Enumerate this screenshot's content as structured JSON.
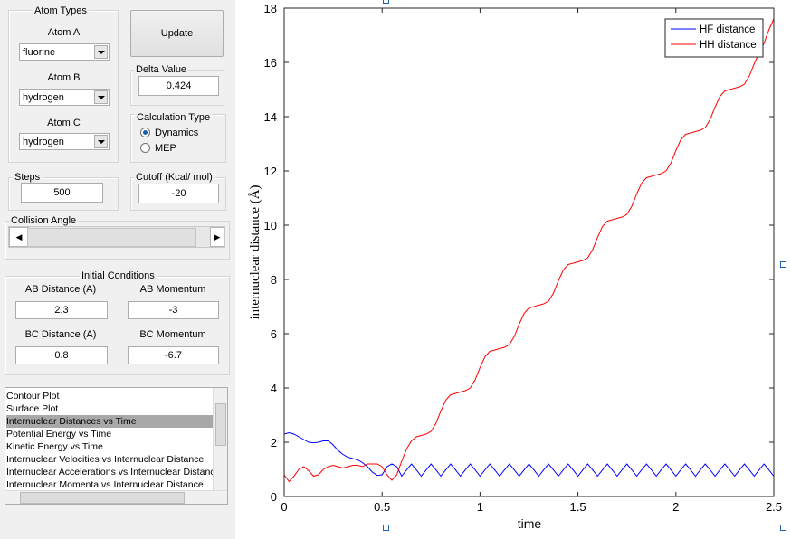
{
  "atom_types": {
    "title": "Atom Types",
    "fields": [
      {
        "label": "Atom A",
        "value": "fluorine"
      },
      {
        "label": "Atom B",
        "value": "hydrogen"
      },
      {
        "label": "Atom C",
        "value": "hydrogen"
      }
    ]
  },
  "update_button": "Update",
  "delta_value": {
    "title": "Delta Value",
    "value": "0.424"
  },
  "calculation_type": {
    "title": "Calculation Type",
    "options": [
      "Dynamics",
      "MEP"
    ]
  },
  "steps": {
    "title": "Steps",
    "value": "500"
  },
  "cutoff": {
    "title": "Cutoff (Kcal/ mol)",
    "value": "-20"
  },
  "collision_angle": {
    "title": "Collision Angle"
  },
  "initial_conditions": {
    "title": "Initial Conditions",
    "fields": [
      {
        "label": "AB Distance (A)",
        "value": "2.3"
      },
      {
        "label": "AB Momentum",
        "value": "-3"
      },
      {
        "label": "BC Distance (A)",
        "value": "0.8"
      },
      {
        "label": "BC Momentum",
        "value": "-6.7"
      }
    ]
  },
  "plot_list": {
    "items": [
      "Contour Plot",
      "Surface Plot",
      "Internuclear Distances vs Time",
      "Potential Energy vs Time",
      "Kinetic Energy vs Time",
      "Internuclear Velocities vs Internuclear Distance",
      "Internuclear Accelerations vs Internuclear Distance",
      "Internuclear Momenta vs Internuclear Distance"
    ],
    "selected": 2
  },
  "chart_data": {
    "type": "line",
    "x_label": "time",
    "y_label": "internuclear distance (Å)",
    "xlim": [
      0,
      2.5
    ],
    "xticks": [
      0,
      0.5,
      1,
      1.5,
      2,
      2.5
    ],
    "ylim": [
      0,
      18
    ],
    "yticks": [
      0,
      2,
      4,
      6,
      8,
      10,
      12,
      14,
      16,
      18
    ],
    "grid": false,
    "legend": "upper right",
    "x": [
      0,
      0.025,
      0.05,
      0.075,
      0.1,
      0.125,
      0.15,
      0.175,
      0.2,
      0.225,
      0.25,
      0.275,
      0.3,
      0.325,
      0.35,
      0.375,
      0.4,
      0.425,
      0.45,
      0.475,
      0.5,
      0.525,
      0.55,
      0.575,
      0.6,
      0.625,
      0.65,
      0.675,
      0.7,
      0.725,
      0.75,
      0.775,
      0.8,
      0.825,
      0.85,
      0.875,
      0.9,
      0.925,
      0.95,
      0.975,
      1,
      1.025,
      1.05,
      1.075,
      1.1,
      1.125,
      1.15,
      1.175,
      1.2,
      1.225,
      1.25,
      1.275,
      1.3,
      1.325,
      1.35,
      1.375,
      1.4,
      1.425,
      1.45,
      1.475,
      1.5,
      1.525,
      1.55,
      1.575,
      1.6,
      1.625,
      1.65,
      1.675,
      1.7,
      1.725,
      1.75,
      1.775,
      1.8,
      1.825,
      1.85,
      1.875,
      1.9,
      1.925,
      1.95,
      1.975,
      2,
      2.025,
      2.05,
      2.075,
      2.1,
      2.125,
      2.15,
      2.175,
      2.2,
      2.225,
      2.25,
      2.275,
      2.3,
      2.325,
      2.35,
      2.375,
      2.4,
      2.425,
      2.45,
      2.475,
      2.5
    ],
    "series": [
      {
        "name": "HF distance",
        "color": "#0000ff",
        "values": [
          2.3,
          2.35,
          2.3,
          2.2,
          2.1,
          2.0,
          1.98,
          2.0,
          2.05,
          2.05,
          1.9,
          1.7,
          1.55,
          1.45,
          1.4,
          1.35,
          1.25,
          1.1,
          0.9,
          0.78,
          0.8,
          1.1,
          1.2,
          1.1,
          0.75,
          0.98,
          1.2,
          0.98,
          0.75,
          0.98,
          1.2,
          0.98,
          0.75,
          0.98,
          1.2,
          0.98,
          0.75,
          0.98,
          1.2,
          0.98,
          0.75,
          0.98,
          1.2,
          0.98,
          0.75,
          0.98,
          1.2,
          0.98,
          0.75,
          0.98,
          1.2,
          0.98,
          0.75,
          0.98,
          1.2,
          0.98,
          0.75,
          0.98,
          1.2,
          0.98,
          0.75,
          0.98,
          1.2,
          0.98,
          0.75,
          0.98,
          1.2,
          0.98,
          0.75,
          0.98,
          1.2,
          0.98,
          0.75,
          0.98,
          1.2,
          0.98,
          0.75,
          0.98,
          1.2,
          0.98,
          0.75,
          0.98,
          1.2,
          0.98,
          0.75,
          0.98,
          1.2,
          0.98,
          0.75,
          0.98,
          1.2,
          0.98,
          0.75,
          0.98,
          1.2,
          0.98,
          0.75,
          0.98,
          1.2,
          0.98,
          0.75
        ]
      },
      {
        "name": "HH distance",
        "color": "#ff0000",
        "values": [
          0.8,
          0.55,
          0.75,
          1.0,
          1.1,
          0.95,
          0.75,
          0.8,
          1.0,
          1.1,
          1.15,
          1.1,
          1.05,
          1.1,
          1.15,
          1.15,
          1.1,
          1.2,
          1.2,
          1.2,
          1.1,
          0.8,
          0.6,
          0.8,
          1.3,
          1.75,
          2.05,
          2.2,
          2.25,
          2.3,
          2.4,
          2.7,
          3.15,
          3.55,
          3.75,
          3.8,
          3.85,
          3.9,
          4.0,
          4.3,
          4.75,
          5.15,
          5.35,
          5.4,
          5.45,
          5.5,
          5.6,
          5.9,
          6.35,
          6.75,
          6.95,
          7.0,
          7.05,
          7.1,
          7.2,
          7.5,
          7.95,
          8.35,
          8.55,
          8.6,
          8.65,
          8.7,
          8.8,
          9.1,
          9.55,
          9.95,
          10.15,
          10.2,
          10.25,
          10.3,
          10.4,
          10.7,
          11.15,
          11.55,
          11.75,
          11.8,
          11.85,
          11.9,
          12.0,
          12.3,
          12.75,
          13.15,
          13.35,
          13.4,
          13.45,
          13.5,
          13.6,
          13.9,
          14.35,
          14.75,
          14.95,
          15.0,
          15.05,
          15.1,
          15.2,
          15.5,
          15.95,
          16.35,
          16.7,
          17.2,
          17.6
        ]
      }
    ]
  }
}
